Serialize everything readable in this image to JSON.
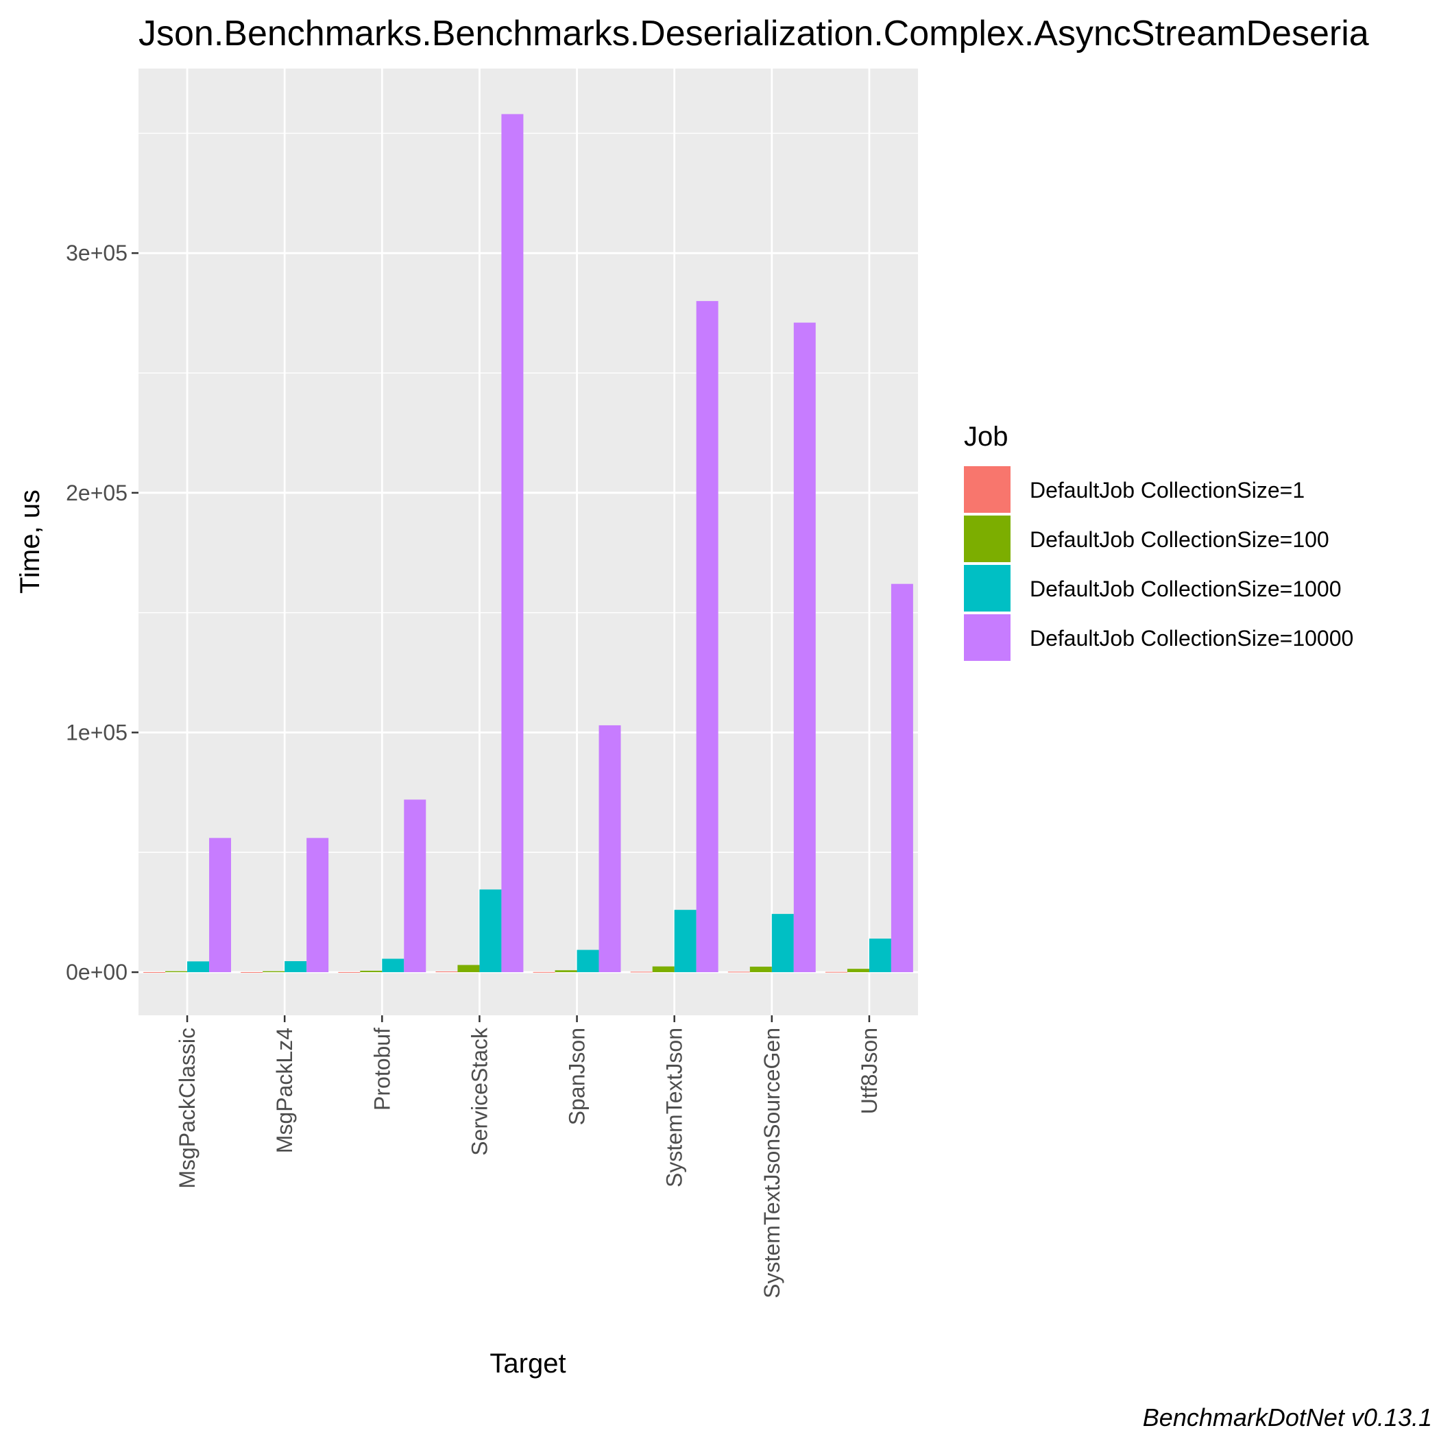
{
  "chart_data": {
    "type": "bar",
    "title": "Json.Benchmarks.Benchmarks.Deserialization.Complex.AsyncStreamDeseria",
    "xlabel": "Target",
    "ylabel": "Time, us",
    "caption": "BenchmarkDotNet v0.13.1",
    "categories": [
      "MsgPackClassic",
      "MsgPackLz4",
      "Protobuf",
      "ServiceStack",
      "SpanJson",
      "SystemTextJson",
      "SystemTextJsonSourceGen",
      "Utf8Json"
    ],
    "ylim": [
      -18000,
      377000
    ],
    "yticks": [
      0,
      100000,
      200000,
      300000
    ],
    "ytick_labels": [
      "0e+00",
      "1e+05",
      "2e+05",
      "3e+05"
    ],
    "grid": true,
    "legend": {
      "title": "Job",
      "placement": "right"
    },
    "series": [
      {
        "name": "DefaultJob CollectionSize=1",
        "color": "#F8766D",
        "values": [
          40,
          40,
          50,
          300,
          80,
          200,
          200,
          120
        ]
      },
      {
        "name": "DefaultJob CollectionSize=100",
        "color": "#7CAE00",
        "values": [
          400,
          400,
          600,
          3000,
          800,
          2400,
          2300,
          1400
        ]
      },
      {
        "name": "DefaultJob CollectionSize=1000",
        "color": "#00BFC4",
        "values": [
          4500,
          4600,
          5600,
          34500,
          9300,
          26000,
          24300,
          14000
        ]
      },
      {
        "name": "DefaultJob CollectionSize=10000",
        "color": "#C77CFF",
        "values": [
          56000,
          56000,
          72000,
          358000,
          103000,
          280000,
          271000,
          162000
        ]
      }
    ]
  }
}
